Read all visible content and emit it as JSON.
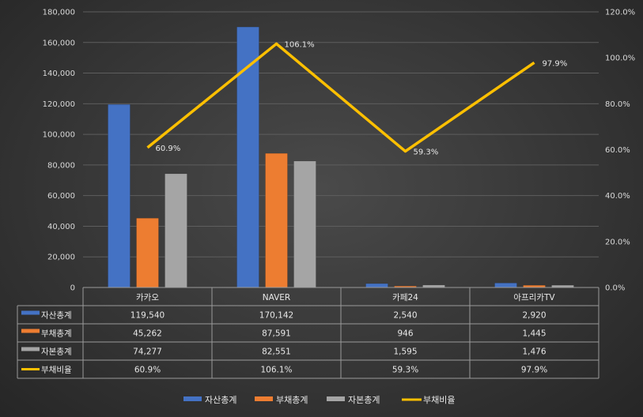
{
  "chart_data": {
    "type": "bar",
    "categories": [
      "카카오",
      "NAVER",
      "카페24",
      "아프리카TV"
    ],
    "series": [
      {
        "name": "자산총계",
        "kind": "bar",
        "axis": "left",
        "color": "#4472c4",
        "values": [
          119540,
          170142,
          2540,
          2920
        ],
        "labels": [
          "119,540",
          "170,142",
          "2,540",
          "2,920"
        ]
      },
      {
        "name": "부채총계",
        "kind": "bar",
        "axis": "left",
        "color": "#ed7d31",
        "values": [
          45262,
          87591,
          946,
          1445
        ],
        "labels": [
          "45,262",
          "87,591",
          "946",
          "1,445"
        ]
      },
      {
        "name": "자본총계",
        "kind": "bar",
        "axis": "left",
        "color": "#a5a5a5",
        "values": [
          74277,
          82551,
          1595,
          1476
        ],
        "labels": [
          "74,277",
          "82,551",
          "1,595",
          "1,476"
        ]
      },
      {
        "name": "부채비율",
        "kind": "line",
        "axis": "right",
        "color": "#ffc000",
        "values": [
          60.9,
          106.1,
          59.3,
          97.9
        ],
        "labels": [
          "60.9%",
          "106.1%",
          "59.3%",
          "97.9%"
        ]
      }
    ],
    "ylim_left": [
      0,
      180000
    ],
    "ylim_right": [
      0,
      120
    ],
    "y_ticks_left": [
      "0",
      "20,000",
      "40,000",
      "60,000",
      "80,000",
      "100,000",
      "120,000",
      "140,000",
      "160,000",
      "180,000"
    ],
    "y_ticks_right": [
      "0.0%",
      "20.0%",
      "40.0%",
      "60.0%",
      "80.0%",
      "100.0%",
      "120.0%"
    ],
    "grid": true,
    "legend": "bottom",
    "data_table": true
  }
}
